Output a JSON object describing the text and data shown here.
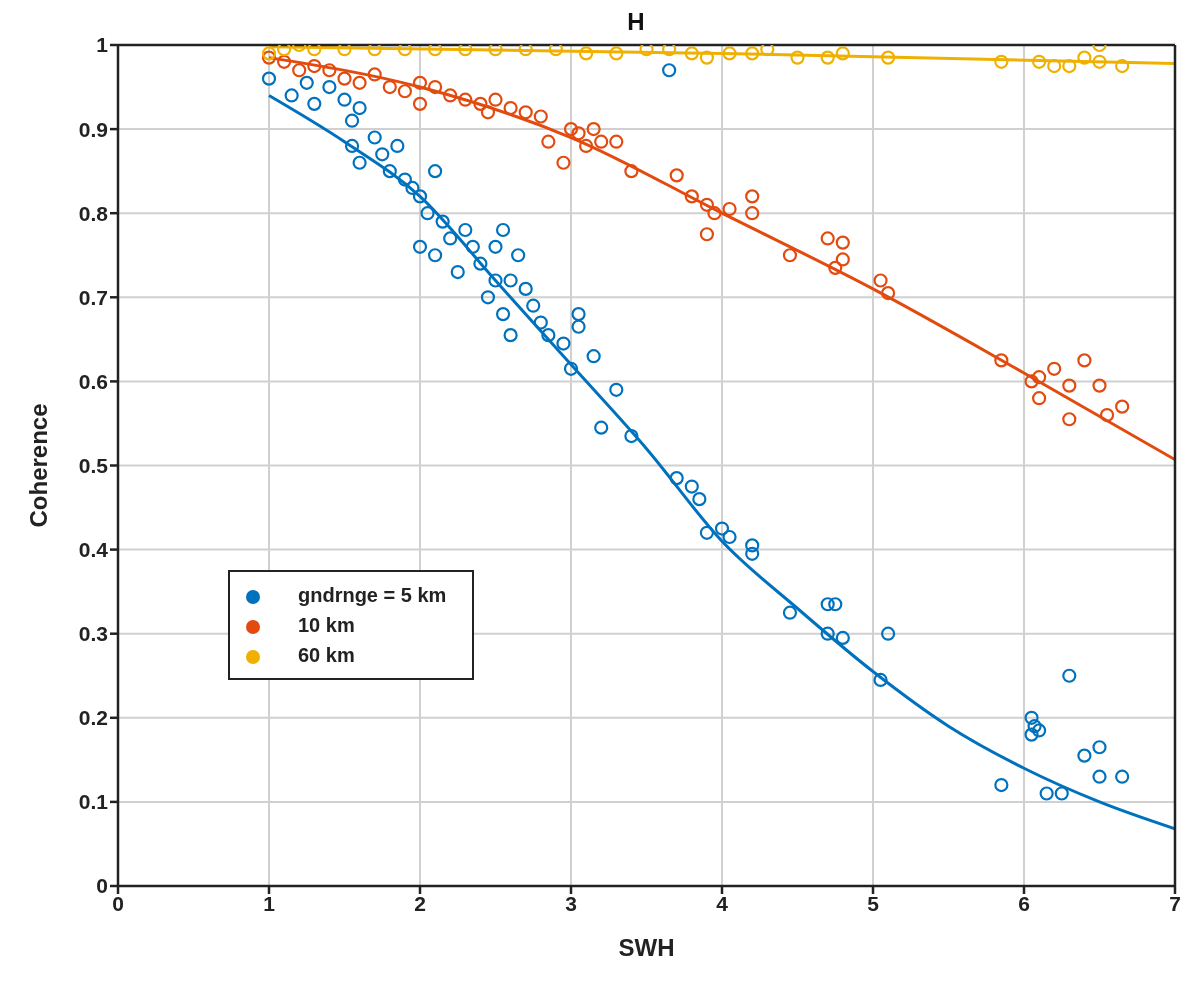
{
  "chart_data": {
    "type": "scatter",
    "title": "H",
    "xlabel": "SWH",
    "ylabel": "Coherence",
    "xlim": [
      0,
      7
    ],
    "ylim": [
      0,
      1
    ],
    "xticks": [
      0,
      1,
      2,
      3,
      4,
      5,
      6,
      7
    ],
    "yticks": [
      0,
      0.1,
      0.2,
      0.3,
      0.4,
      0.5,
      0.6,
      0.7,
      0.8,
      0.9,
      1
    ],
    "grid": true,
    "legend": "left",
    "marker": "circle",
    "series": [
      {
        "name": "gndrnge = 5 km",
        "color": "#0072bd",
        "x": [
          1.0,
          1.15,
          1.25,
          1.3,
          1.4,
          1.5,
          1.55,
          1.6,
          1.55,
          1.6,
          1.7,
          1.75,
          1.8,
          1.85,
          1.9,
          1.95,
          2.0,
          2.0,
          2.05,
          2.1,
          2.15,
          2.1,
          2.2,
          2.25,
          2.3,
          2.35,
          2.4,
          2.45,
          2.5,
          2.5,
          2.55,
          2.55,
          2.6,
          2.65,
          2.6,
          2.7,
          2.75,
          2.8,
          2.85,
          2.95,
          3.0,
          3.05,
          3.05,
          3.15,
          3.2,
          3.3,
          3.4,
          3.65,
          3.7,
          3.8,
          3.85,
          3.9,
          4.0,
          4.05,
          4.2,
          4.2,
          4.45,
          4.7,
          4.75,
          4.7,
          4.8,
          5.1,
          5.05,
          5.85,
          6.05,
          6.07,
          6.1,
          6.05,
          6.3,
          6.15,
          6.25,
          6.4,
          6.5,
          6.5,
          6.65
        ],
        "values": [
          0.96,
          0.94,
          0.955,
          0.93,
          0.95,
          0.935,
          0.91,
          0.925,
          0.88,
          0.86,
          0.89,
          0.87,
          0.85,
          0.88,
          0.84,
          0.83,
          0.82,
          0.76,
          0.8,
          0.85,
          0.79,
          0.75,
          0.77,
          0.73,
          0.78,
          0.76,
          0.74,
          0.7,
          0.72,
          0.76,
          0.78,
          0.68,
          0.655,
          0.75,
          0.72,
          0.71,
          0.69,
          0.67,
          0.655,
          0.645,
          0.615,
          0.68,
          0.665,
          0.63,
          0.545,
          0.59,
          0.535,
          0.97,
          0.485,
          0.475,
          0.46,
          0.42,
          0.425,
          0.415,
          0.405,
          0.395,
          0.325,
          0.335,
          0.335,
          0.3,
          0.295,
          0.3,
          0.245,
          0.12,
          0.2,
          0.19,
          0.185,
          0.18,
          0.25,
          0.11,
          0.11,
          0.155,
          0.165,
          0.13,
          0.13
        ]
      },
      {
        "name": "10 km",
        "color": "#e34a0e",
        "x": [
          1.0,
          1.1,
          1.2,
          1.3,
          1.4,
          1.5,
          1.6,
          1.7,
          1.8,
          1.9,
          2.0,
          2.0,
          2.1,
          2.2,
          2.3,
          2.4,
          2.45,
          2.5,
          2.6,
          2.7,
          2.8,
          2.85,
          2.95,
          3.0,
          3.05,
          3.1,
          3.15,
          3.2,
          3.3,
          3.4,
          3.7,
          3.8,
          3.9,
          3.9,
          3.95,
          4.05,
          4.2,
          4.2,
          4.45,
          4.7,
          4.75,
          4.8,
          4.8,
          5.05,
          5.1,
          5.85,
          6.05,
          6.1,
          6.1,
          6.2,
          6.3,
          6.3,
          6.4,
          6.5,
          6.55,
          6.65
        ],
        "values": [
          0.985,
          0.98,
          0.97,
          0.975,
          0.97,
          0.96,
          0.955,
          0.965,
          0.95,
          0.945,
          0.93,
          0.955,
          0.95,
          0.94,
          0.935,
          0.93,
          0.92,
          0.935,
          0.925,
          0.92,
          0.915,
          0.885,
          0.86,
          0.9,
          0.895,
          0.88,
          0.9,
          0.885,
          0.885,
          0.85,
          0.845,
          0.82,
          0.775,
          0.81,
          0.8,
          0.805,
          0.82,
          0.8,
          0.75,
          0.77,
          0.735,
          0.765,
          0.745,
          0.72,
          0.705,
          0.625,
          0.6,
          0.58,
          0.605,
          0.615,
          0.595,
          0.555,
          0.625,
          0.595,
          0.56,
          0.57
        ]
      },
      {
        "name": "60 km",
        "color": "#f0b000",
        "x": [
          1.0,
          1.1,
          1.2,
          1.3,
          1.5,
          1.7,
          1.9,
          2.1,
          2.3,
          2.5,
          2.7,
          2.9,
          3.1,
          3.3,
          3.5,
          3.65,
          3.8,
          3.9,
          4.05,
          4.2,
          4.3,
          4.5,
          4.7,
          4.8,
          5.1,
          5.85,
          6.1,
          6.2,
          6.3,
          6.4,
          6.5,
          6.5,
          6.65
        ],
        "values": [
          0.99,
          0.995,
          1.0,
          0.995,
          0.995,
          0.995,
          0.995,
          0.995,
          0.995,
          0.995,
          0.995,
          0.995,
          0.99,
          0.99,
          0.995,
          0.995,
          0.99,
          0.985,
          0.99,
          0.99,
          0.995,
          0.985,
          0.985,
          0.99,
          0.985,
          0.98,
          0.98,
          0.975,
          0.975,
          0.985,
          0.98,
          1.0,
          0.975
        ]
      },
      {
        "type": "line",
        "marker": "none",
        "color": "#0072bd",
        "x": [
          1,
          1.5,
          2,
          2.5,
          3,
          3.5,
          4,
          4.5,
          5,
          5.5,
          6,
          6.5,
          7
        ],
        "values": [
          0.94,
          0.885,
          0.82,
          0.72,
          0.62,
          0.52,
          0.41,
          0.33,
          0.255,
          0.19,
          0.14,
          0.1,
          0.068
        ]
      },
      {
        "type": "line",
        "marker": "none",
        "color": "#e34a0e",
        "x": [
          1,
          2,
          3,
          4,
          5,
          6,
          7
        ],
        "values": [
          0.985,
          0.95,
          0.89,
          0.8,
          0.71,
          0.61,
          0.507
        ]
      },
      {
        "type": "line",
        "marker": "none",
        "color": "#f0b000",
        "x": [
          1,
          4,
          7
        ],
        "values": [
          0.998,
          0.99,
          0.978
        ]
      }
    ]
  }
}
